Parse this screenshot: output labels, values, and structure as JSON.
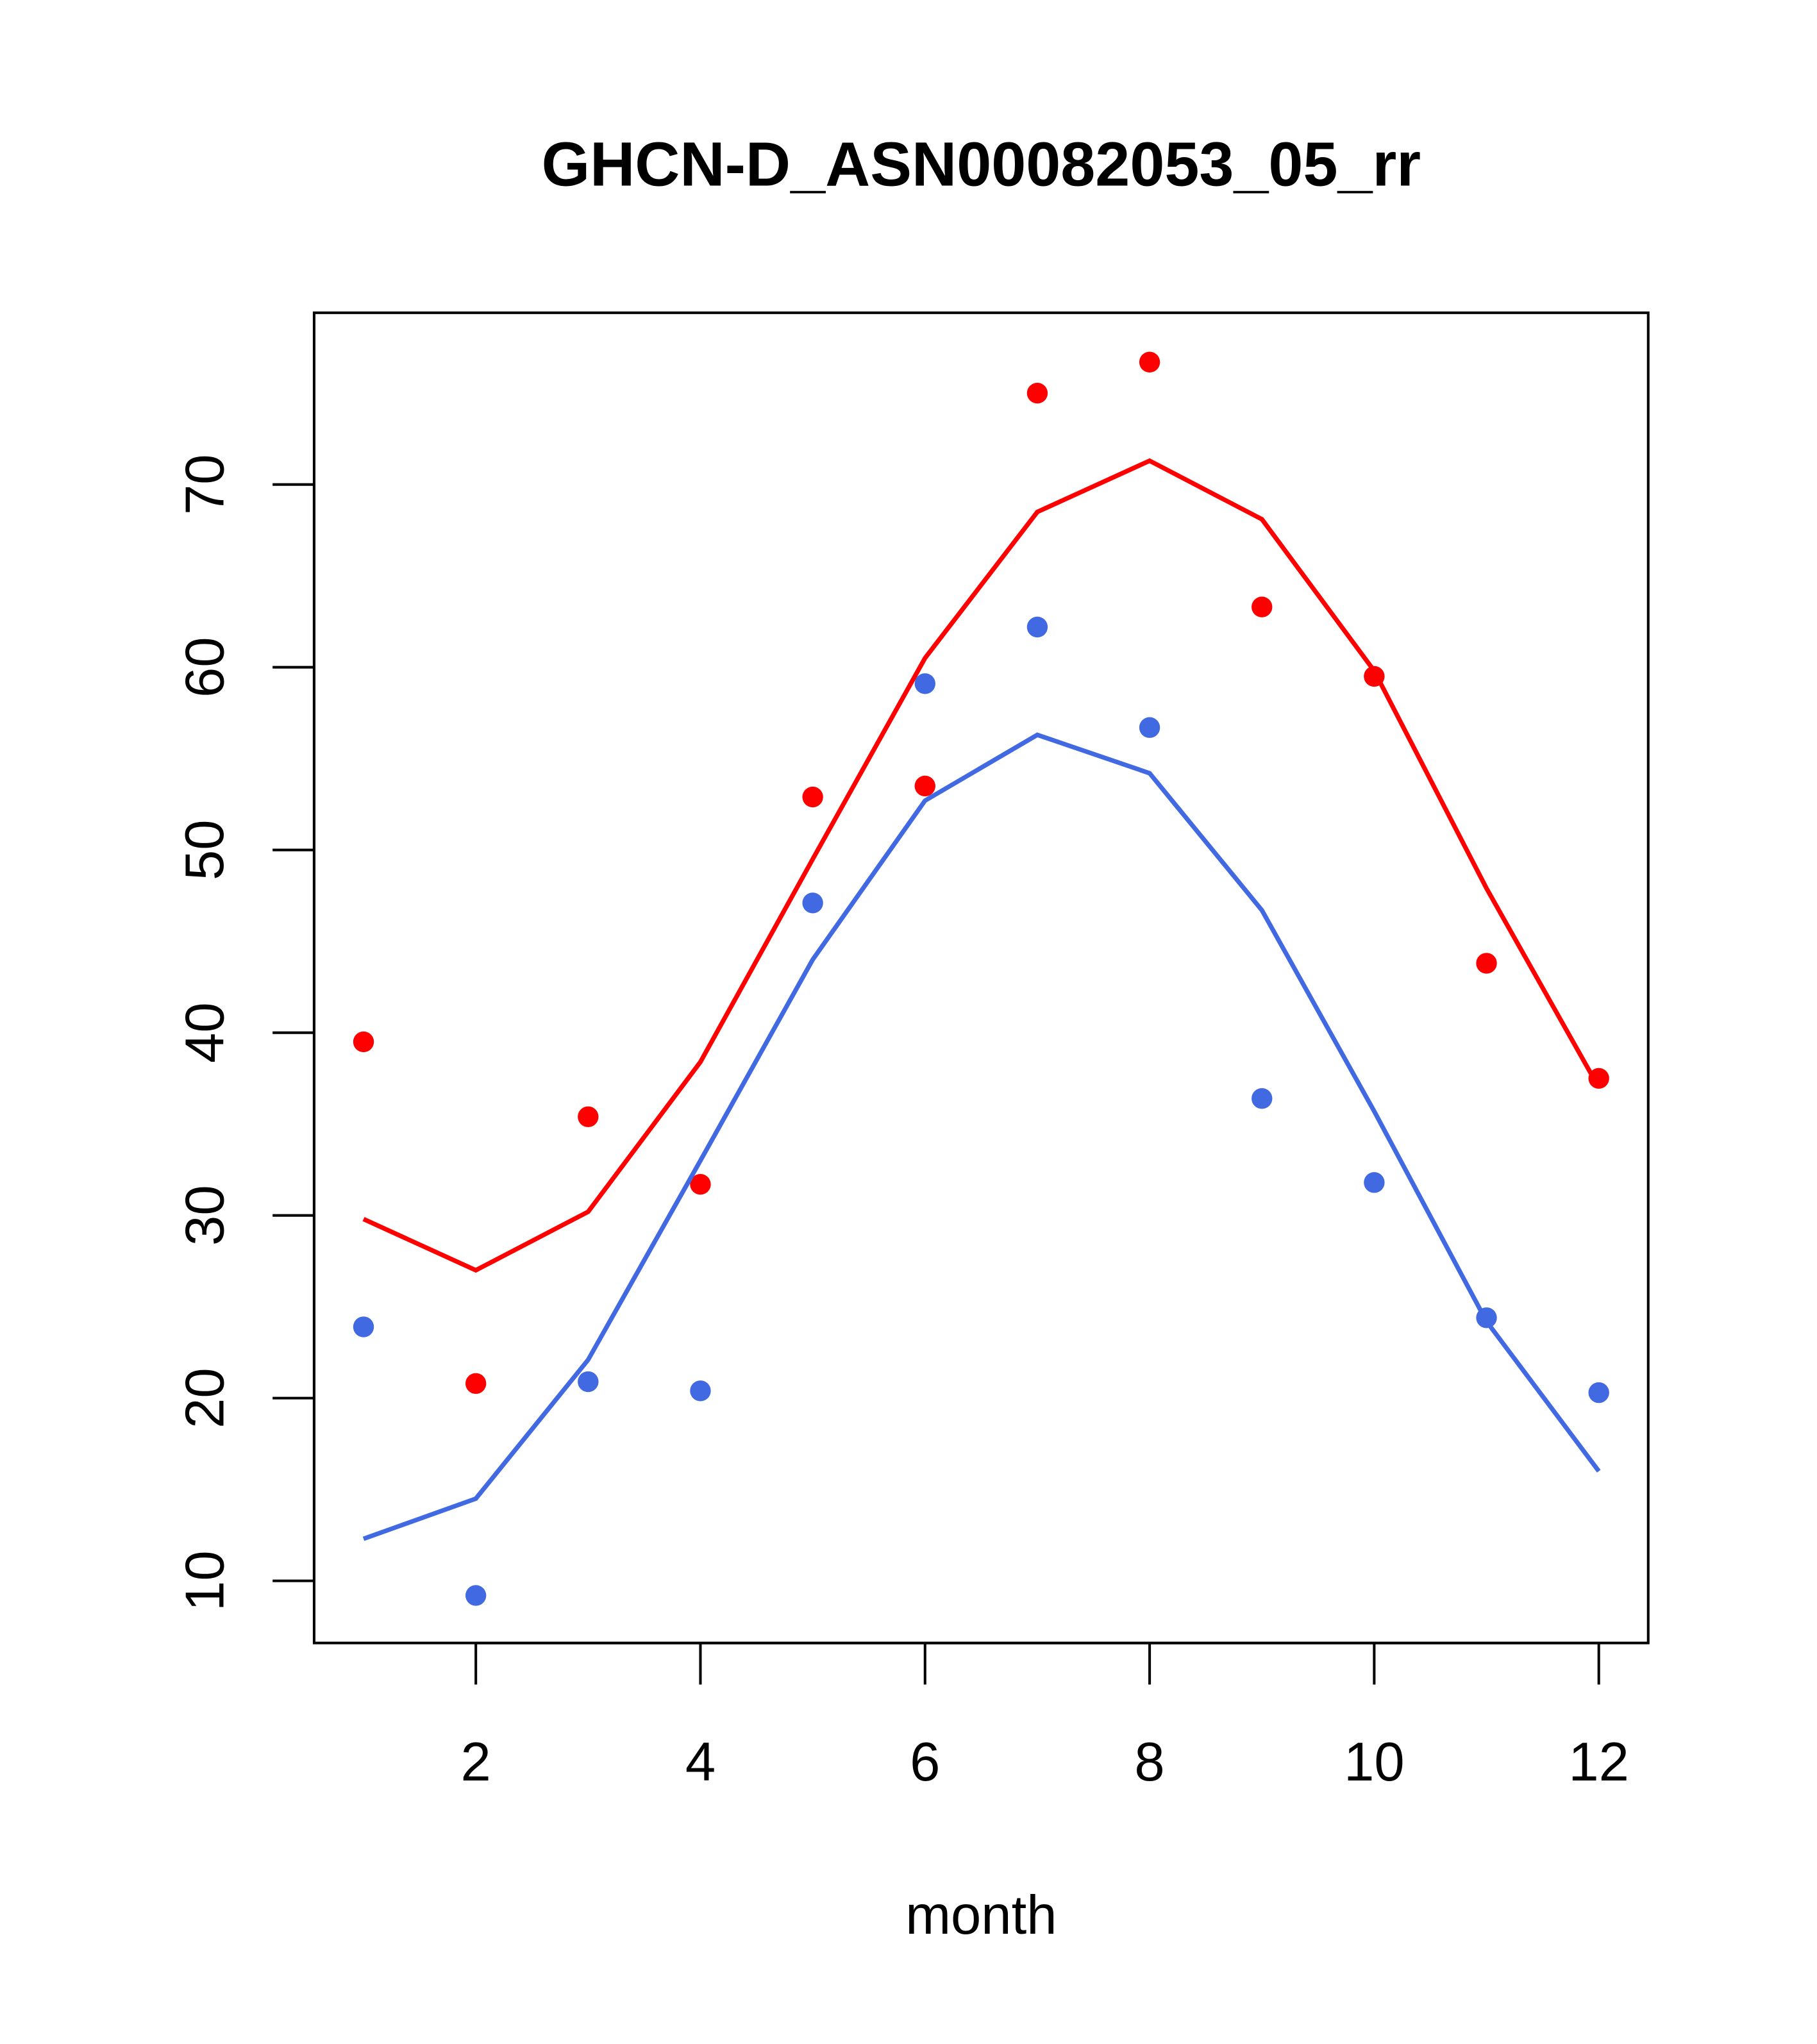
{
  "chart_data": {
    "type": "line",
    "title": "GHCN-D_ASN00082053_05_rr",
    "xlabel": "month",
    "ylabel": "",
    "xlim": [
      0.56,
      12.44
    ],
    "ylim": [
      6.6,
      79.4
    ],
    "x_ticks": [
      2,
      4,
      6,
      8,
      10,
      12
    ],
    "y_ticks": [
      10,
      20,
      30,
      40,
      50,
      60,
      70
    ],
    "grid": false,
    "x": [
      1,
      2,
      3,
      4,
      5,
      6,
      7,
      8,
      9,
      10,
      11,
      12
    ],
    "series": [
      {
        "name": "red points",
        "kind": "scatter",
        "color": "#ff0000",
        "values": [
          39.5,
          20.8,
          35.4,
          31.7,
          52.9,
          53.5,
          75.0,
          76.7,
          63.3,
          59.5,
          43.8,
          37.5
        ]
      },
      {
        "name": "red line",
        "kind": "line",
        "color": "#ff0000",
        "values": [
          29.8,
          27.0,
          30.2,
          38.4,
          49.5,
          60.5,
          68.5,
          71.3,
          68.1,
          59.8,
          47.9,
          37.0
        ]
      },
      {
        "name": "blue points",
        "kind": "scatter",
        "color": "#4169e1",
        "values": [
          23.9,
          9.2,
          20.9,
          20.4,
          47.1,
          59.1,
          62.2,
          56.7,
          36.4,
          31.8,
          24.4,
          20.3
        ]
      },
      {
        "name": "blue line",
        "kind": "line",
        "color": "#4169e1",
        "values": [
          12.3,
          14.5,
          22.1,
          33.0,
          44.0,
          52.7,
          56.3,
          54.2,
          46.7,
          35.7,
          24.2,
          16.0
        ]
      }
    ]
  }
}
